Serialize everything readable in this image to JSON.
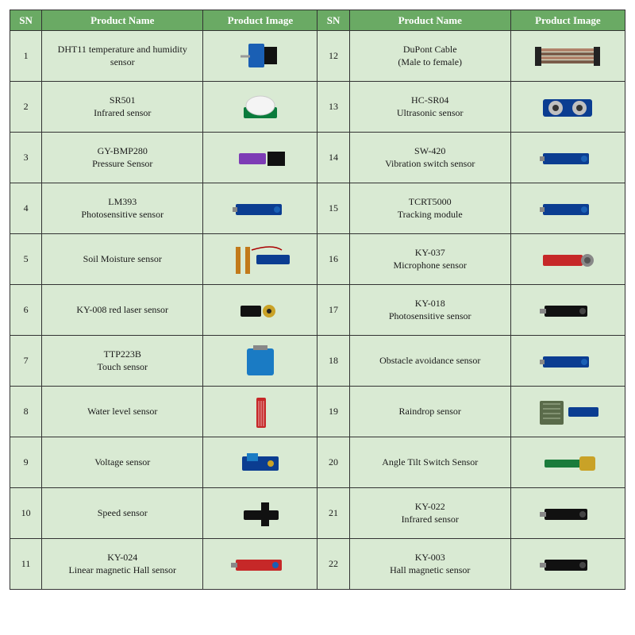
{
  "columns": {
    "sn": "SN",
    "name": "Product Name",
    "image": "Product Image"
  },
  "colors": {
    "header_bg": "#6aaa64",
    "header_fg": "#ffffff",
    "row_bg": "#d9ead3",
    "img_bg": "#ffffff",
    "border": "#333333"
  },
  "left": [
    {
      "sn": 1,
      "name": "DHT11 temperature and humidity sensor",
      "img": "blue-black-module"
    },
    {
      "sn": 2,
      "name": "SR501\nInfrared sensor",
      "img": "pir-dome"
    },
    {
      "sn": 3,
      "name": "GY-BMP280\nPressure Sensor",
      "img": "purple-board"
    },
    {
      "sn": 4,
      "name": "LM393\nPhotosensitive sensor",
      "img": "blue-stick"
    },
    {
      "sn": 5,
      "name": "Soil Moisture sensor",
      "img": "forked-probe"
    },
    {
      "sn": 6,
      "name": "KY-008 red laser sensor",
      "img": "gold-laser"
    },
    {
      "sn": 7,
      "name": "TTP223B\nTouch sensor",
      "img": "blue-square"
    },
    {
      "sn": 8,
      "name": "Water level sensor",
      "img": "red-strip"
    },
    {
      "sn": 9,
      "name": "Voltage sensor",
      "img": "blue-block"
    },
    {
      "sn": 10,
      "name": "Speed sensor",
      "img": "black-slot"
    },
    {
      "sn": 11,
      "name": "KY-024\nLinear magnetic Hall sensor",
      "img": "red-stick"
    }
  ],
  "right": [
    {
      "sn": 12,
      "name": "DuPont Cable\n(Male to female)",
      "img": "ribbon-cable"
    },
    {
      "sn": 13,
      "name": "HC-SR04\nUltrasonic sensor",
      "img": "dual-eye"
    },
    {
      "sn": 14,
      "name": "SW-420\nVibration switch sensor",
      "img": "blue-stick"
    },
    {
      "sn": 15,
      "name": "TCRT5000\nTracking module",
      "img": "blue-stick"
    },
    {
      "sn": 16,
      "name": "KY-037\nMicrophone sensor",
      "img": "red-mic"
    },
    {
      "sn": 17,
      "name": "KY-018\nPhotosensitive sensor",
      "img": "black-stick"
    },
    {
      "sn": 18,
      "name": "Obstacle avoidance sensor",
      "img": "blue-stick"
    },
    {
      "sn": 19,
      "name": "Raindrop sensor",
      "img": "rain-plate"
    },
    {
      "sn": 20,
      "name": "Angle Tilt Switch Sensor",
      "img": "gold-stick"
    },
    {
      "sn": 21,
      "name": "KY-022\nInfrared sensor",
      "img": "black-stick"
    },
    {
      "sn": 22,
      "name": "KY-003\nHall magnetic sensor",
      "img": "black-stick"
    }
  ]
}
